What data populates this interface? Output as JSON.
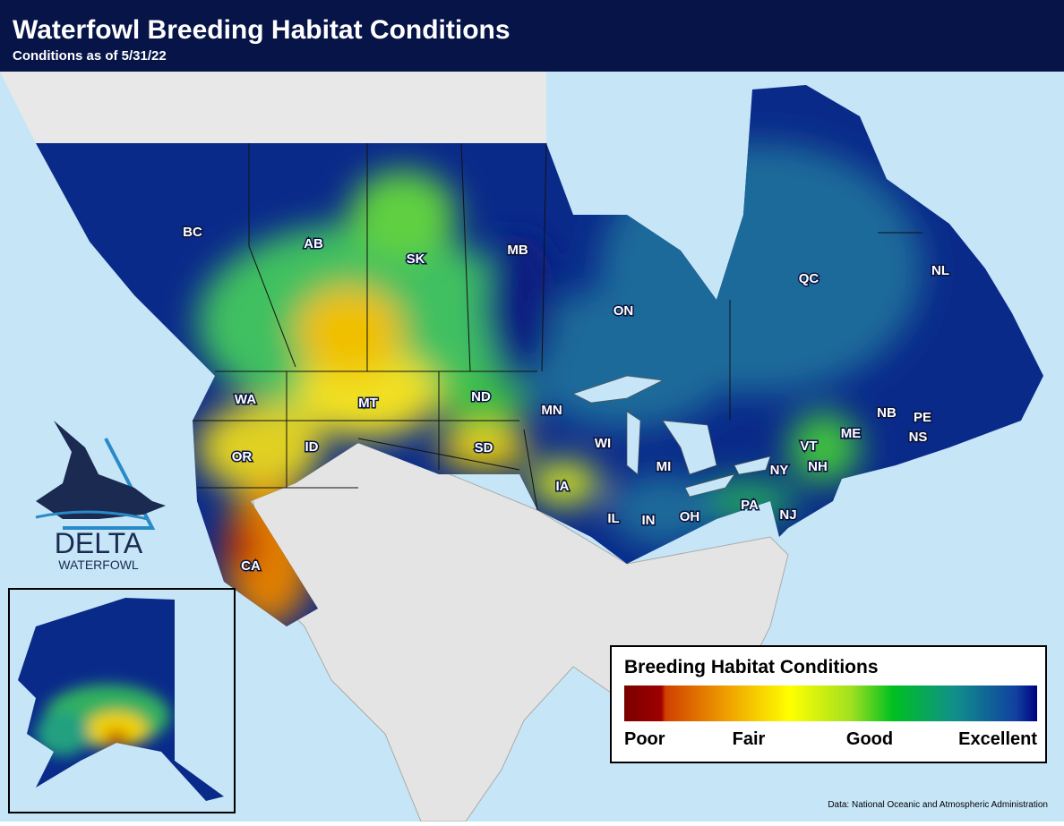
{
  "header": {
    "title": "Waterfowl Breeding Habitat Conditions",
    "subtitle": "Conditions as of 5/31/22"
  },
  "regions": [
    "BC",
    "AB",
    "SK",
    "MB",
    "ON",
    "QC",
    "NL",
    "WA",
    "MT",
    "ND",
    "MN",
    "WI",
    "MI",
    "OR",
    "ID",
    "SD",
    "IA",
    "IL",
    "IN",
    "OH",
    "PA",
    "NY",
    "VT",
    "NH",
    "ME",
    "NB",
    "PE",
    "NS",
    "NJ",
    "CA"
  ],
  "logo": {
    "name": "DELTA",
    "subname": "WATERFOWL"
  },
  "legend": {
    "title": "Breeding Habitat Conditions",
    "labels": [
      "Poor",
      "Fair",
      "Good",
      "Excellent"
    ]
  },
  "source": "Data: National Oceanic and Atmospheric Administration"
}
